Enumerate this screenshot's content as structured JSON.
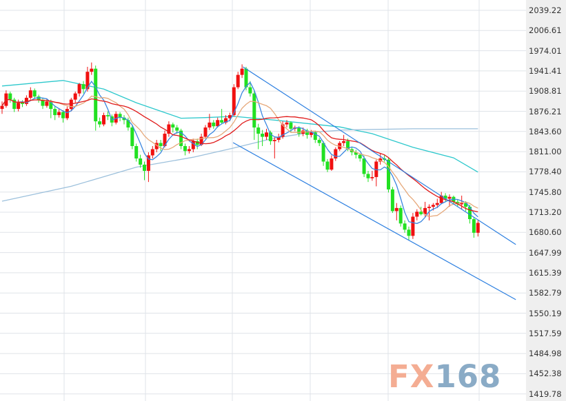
{
  "chart_data": {
    "type": "candlestick",
    "title": "",
    "xlabel": "",
    "ylabel": "",
    "ylim": [
      1419.78,
      2039.22
    ],
    "grid": true,
    "y_ticks": [
      "2039.22",
      "2006.61",
      "1974.01",
      "1941.41",
      "1908.81",
      "1876.21",
      "1843.60",
      "1811.00",
      "1778.40",
      "1745.80",
      "1713.20",
      "1680.60",
      "1647.99",
      "1615.39",
      "1582.79",
      "1550.19",
      "1517.59",
      "1484.98",
      "1452.38",
      "1419.78"
    ],
    "colors": {
      "up": "#f01010",
      "down": "#22e022",
      "ma5": "#3a86e0",
      "ma10": "#e6a87a",
      "ma20": "#e01818",
      "ma_cyan": "#2cc8cc",
      "ma_light": "#9cc0dc",
      "trend": "#2a7ee0"
    },
    "ohlc": [
      [
        1880,
        1892,
        1872,
        1885
      ],
      [
        1885,
        1910,
        1882,
        1905
      ],
      [
        1905,
        1908,
        1890,
        1895
      ],
      [
        1895,
        1898,
        1875,
        1880
      ],
      [
        1880,
        1895,
        1876,
        1890
      ],
      [
        1890,
        1894,
        1883,
        1888
      ],
      [
        1888,
        1902,
        1885,
        1898
      ],
      [
        1898,
        1915,
        1895,
        1910
      ],
      [
        1910,
        1913,
        1896,
        1900
      ],
      [
        1900,
        1903,
        1890,
        1895
      ],
      [
        1895,
        1898,
        1880,
        1885
      ],
      [
        1885,
        1896,
        1882,
        1892
      ],
      [
        1892,
        1895,
        1865,
        1880
      ],
      [
        1880,
        1884,
        1862,
        1870
      ],
      [
        1870,
        1880,
        1866,
        1875
      ],
      [
        1875,
        1878,
        1858,
        1865
      ],
      [
        1865,
        1884,
        1862,
        1880
      ],
      [
        1880,
        1898,
        1876,
        1895
      ],
      [
        1895,
        1908,
        1890,
        1905
      ],
      [
        1905,
        1922,
        1900,
        1920
      ],
      [
        1920,
        1925,
        1905,
        1912
      ],
      [
        1912,
        1948,
        1908,
        1940
      ],
      [
        1940,
        1955,
        1935,
        1945
      ],
      [
        1945,
        1950,
        1845,
        1860
      ],
      [
        1860,
        1866,
        1850,
        1855
      ],
      [
        1855,
        1874,
        1852,
        1870
      ],
      [
        1870,
        1876,
        1862,
        1868
      ],
      [
        1868,
        1871,
        1852,
        1858
      ],
      [
        1858,
        1876,
        1855,
        1872
      ],
      [
        1872,
        1875,
        1860,
        1866
      ],
      [
        1866,
        1870,
        1855,
        1862
      ],
      [
        1862,
        1866,
        1845,
        1850
      ],
      [
        1850,
        1853,
        1815,
        1820
      ],
      [
        1820,
        1824,
        1795,
        1800
      ],
      [
        1800,
        1806,
        1785,
        1790
      ],
      [
        1790,
        1795,
        1765,
        1780
      ],
      [
        1780,
        1810,
        1762,
        1805
      ],
      [
        1805,
        1820,
        1800,
        1815
      ],
      [
        1815,
        1830,
        1810,
        1825
      ],
      [
        1825,
        1830,
        1812,
        1820
      ],
      [
        1820,
        1845,
        1818,
        1840
      ],
      [
        1840,
        1860,
        1835,
        1855
      ],
      [
        1855,
        1858,
        1842,
        1850
      ],
      [
        1850,
        1854,
        1840,
        1845
      ],
      [
        1845,
        1848,
        1815,
        1820
      ],
      [
        1820,
        1824,
        1805,
        1812
      ],
      [
        1812,
        1820,
        1808,
        1815
      ],
      [
        1815,
        1832,
        1810,
        1828
      ],
      [
        1828,
        1832,
        1815,
        1822
      ],
      [
        1822,
        1840,
        1820,
        1835
      ],
      [
        1835,
        1854,
        1832,
        1850
      ],
      [
        1850,
        1872,
        1846,
        1858
      ],
      [
        1858,
        1862,
        1848,
        1852
      ],
      [
        1852,
        1866,
        1850,
        1862
      ],
      [
        1862,
        1880,
        1855,
        1858
      ],
      [
        1858,
        1870,
        1855,
        1865
      ],
      [
        1865,
        1874,
        1860,
        1870
      ],
      [
        1870,
        1920,
        1868,
        1915
      ],
      [
        1915,
        1940,
        1912,
        1935
      ],
      [
        1935,
        1952,
        1930,
        1945
      ],
      [
        1945,
        1948,
        1910,
        1915
      ],
      [
        1915,
        1925,
        1900,
        1905
      ],
      [
        1905,
        1910,
        1830,
        1850
      ],
      [
        1850,
        1856,
        1815,
        1840
      ],
      [
        1840,
        1846,
        1820,
        1835
      ],
      [
        1835,
        1848,
        1830,
        1842
      ],
      [
        1842,
        1845,
        1822,
        1828
      ],
      [
        1828,
        1834,
        1800,
        1830
      ],
      [
        1830,
        1840,
        1826,
        1835
      ],
      [
        1835,
        1860,
        1832,
        1855
      ],
      [
        1855,
        1862,
        1850,
        1858
      ],
      [
        1858,
        1860,
        1842,
        1848
      ],
      [
        1848,
        1853,
        1844,
        1850
      ],
      [
        1850,
        1852,
        1835,
        1840
      ],
      [
        1840,
        1850,
        1836,
        1845
      ],
      [
        1845,
        1848,
        1832,
        1838
      ],
      [
        1838,
        1846,
        1834,
        1842
      ],
      [
        1842,
        1845,
        1825,
        1830
      ],
      [
        1830,
        1833,
        1820,
        1825
      ],
      [
        1825,
        1828,
        1788,
        1795
      ],
      [
        1795,
        1799,
        1778,
        1782
      ],
      [
        1782,
        1805,
        1780,
        1800
      ],
      [
        1800,
        1818,
        1796,
        1815
      ],
      [
        1815,
        1828,
        1812,
        1825
      ],
      [
        1825,
        1838,
        1820,
        1828
      ],
      [
        1828,
        1832,
        1812,
        1815
      ],
      [
        1815,
        1819,
        1805,
        1810
      ],
      [
        1810,
        1814,
        1800,
        1806
      ],
      [
        1806,
        1808,
        1795,
        1800
      ],
      [
        1800,
        1804,
        1770,
        1775
      ],
      [
        1775,
        1780,
        1762,
        1768
      ],
      [
        1768,
        1780,
        1764,
        1770
      ],
      [
        1770,
        1798,
        1755,
        1795
      ],
      [
        1795,
        1808,
        1790,
        1800
      ],
      [
        1800,
        1805,
        1795,
        1798
      ],
      [
        1798,
        1802,
        1745,
        1750
      ],
      [
        1750,
        1754,
        1712,
        1715
      ],
      [
        1715,
        1728,
        1700,
        1720
      ],
      [
        1720,
        1724,
        1690,
        1695
      ],
      [
        1695,
        1700,
        1680,
        1685
      ],
      [
        1685,
        1690,
        1668,
        1675
      ],
      [
        1675,
        1712,
        1670,
        1706
      ],
      [
        1706,
        1718,
        1700,
        1714
      ],
      [
        1714,
        1722,
        1708,
        1710
      ],
      [
        1710,
        1730,
        1706,
        1720
      ],
      [
        1720,
        1726,
        1700,
        1722
      ],
      [
        1722,
        1728,
        1716,
        1725
      ],
      [
        1725,
        1735,
        1720,
        1728
      ],
      [
        1728,
        1746,
        1726,
        1740
      ],
      [
        1740,
        1744,
        1730,
        1735
      ],
      [
        1735,
        1742,
        1722,
        1738
      ],
      [
        1738,
        1740,
        1726,
        1730
      ],
      [
        1730,
        1734,
        1722,
        1726
      ],
      [
        1726,
        1740,
        1718,
        1728
      ],
      [
        1728,
        1731,
        1715,
        1722
      ],
      [
        1722,
        1725,
        1695,
        1702
      ],
      [
        1702,
        1705,
        1672,
        1680
      ],
      [
        1680,
        1700,
        1674,
        1696
      ]
    ],
    "moving_averages": [
      {
        "period": 5,
        "color_key": "ma5"
      },
      {
        "period": 10,
        "color_key": "ma10"
      },
      {
        "period": 20,
        "color_key": "ma20"
      }
    ],
    "long_lines": [
      {
        "color_key": "ma_cyan",
        "points": [
          [
            0,
            1917
          ],
          [
            15,
            1926
          ],
          [
            25,
            1912
          ],
          [
            33,
            1890
          ],
          [
            44,
            1865
          ],
          [
            50,
            1866
          ],
          [
            57,
            1868
          ],
          [
            67,
            1862
          ],
          [
            83,
            1851
          ],
          [
            91,
            1840
          ],
          [
            101,
            1818
          ],
          [
            111,
            1801
          ],
          [
            117,
            1778
          ]
        ]
      },
      {
        "color_key": "ma_light",
        "points": [
          [
            0,
            1731
          ],
          [
            17,
            1755
          ],
          [
            33,
            1786
          ],
          [
            47,
            1802
          ],
          [
            57,
            1817
          ],
          [
            67,
            1833
          ],
          [
            76,
            1842
          ],
          [
            84,
            1846
          ],
          [
            101,
            1848
          ],
          [
            117,
            1848
          ]
        ]
      }
    ],
    "trend_lines": [
      {
        "points": [
          [
            59.2,
            1948.0
          ],
          [
            126.3,
            1661.0
          ]
        ]
      },
      {
        "points": [
          [
            56.8,
            1825.6
          ],
          [
            126.3,
            1572.0
          ]
        ]
      }
    ]
  },
  "watermark": {
    "part1": "FX",
    "part2": "168"
  }
}
